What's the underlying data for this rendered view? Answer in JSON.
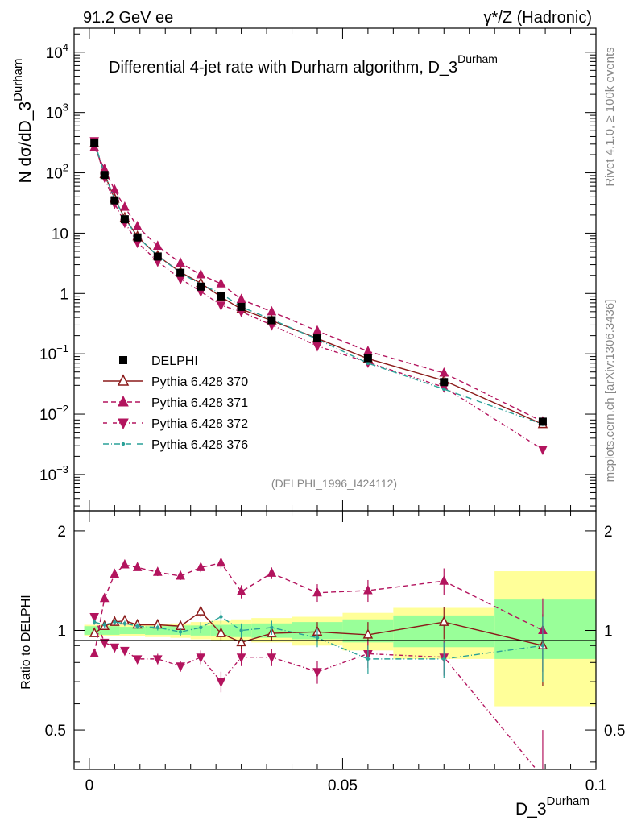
{
  "header": {
    "left": "91.2 GeV ee",
    "right": "γ*/Z (Hadronic)"
  },
  "side_text": {
    "upper": "Rivet 4.1.0, ≥ 100k events",
    "lower": "mcplots.cern.ch [arXiv:1306.3436]"
  },
  "chart_data": {
    "type": "line",
    "title": "Differential 4-jet rate with Durham algorithm, D_3",
    "title_sup": "Durham",
    "watermark": "(DELPHI_1996_I424112)",
    "xlabel": "D_3",
    "xlabel_sup": "Durham",
    "ylabel": "N  dσ/dD_3",
    "ylabel_sup": "Durham",
    "ratio_ylabel": "Ratio to DELPHI",
    "xlim": [
      -0.003,
      0.1
    ],
    "ylim": [
      0.00025,
      25000
    ],
    "ratio_ylim": [
      0.38,
      2.3
    ],
    "x_ticks": [
      0,
      0.05,
      0.1
    ],
    "x_tick_labels": [
      "0",
      "0.05",
      "0.1"
    ],
    "y_ticks": [
      {
        "value": 0.001,
        "base": "10",
        "exp": "−3"
      },
      {
        "value": 0.01,
        "base": "10",
        "exp": "−2"
      },
      {
        "value": 0.1,
        "base": "10",
        "exp": "−1"
      },
      {
        "value": 1,
        "base": "1",
        "exp": ""
      },
      {
        "value": 10,
        "base": "10",
        "exp": ""
      },
      {
        "value": 100,
        "base": "10",
        "exp": "2"
      },
      {
        "value": 1000,
        "base": "10",
        "exp": "3"
      },
      {
        "value": 10000,
        "base": "10",
        "exp": "4"
      }
    ],
    "ratio_ticks": [
      0.5,
      1,
      2
    ],
    "ratio_tick_labels": [
      "0.5",
      "1",
      "2"
    ],
    "x": [
      0.001,
      0.003,
      0.005,
      0.007,
      0.0095,
      0.0135,
      0.018,
      0.022,
      0.026,
      0.03,
      0.036,
      0.045,
      0.055,
      0.07,
      0.0895
    ],
    "data": {
      "name": "DELPHI",
      "color": "#000000",
      "values": [
        310,
        92,
        35,
        17,
        8.5,
        4.1,
        2.2,
        1.3,
        0.9,
        0.6,
        0.36,
        0.18,
        0.085,
        0.034,
        0.0075
      ]
    },
    "bands": [
      {
        "x0": -0.001,
        "x1": 0.002,
        "green": [
          0.97,
          1.03
        ],
        "yellow": [
          0.96,
          1.04
        ]
      },
      {
        "x0": 0.002,
        "x1": 0.004,
        "green": [
          0.97,
          1.03
        ],
        "yellow": [
          0.96,
          1.04
        ]
      },
      {
        "x0": 0.004,
        "x1": 0.006,
        "green": [
          0.97,
          1.03
        ],
        "yellow": [
          0.96,
          1.04
        ]
      },
      {
        "x0": 0.006,
        "x1": 0.008,
        "green": [
          0.975,
          1.025
        ],
        "yellow": [
          0.96,
          1.04
        ]
      },
      {
        "x0": 0.008,
        "x1": 0.011,
        "green": [
          0.975,
          1.025
        ],
        "yellow": [
          0.96,
          1.045
        ]
      },
      {
        "x0": 0.011,
        "x1": 0.016,
        "green": [
          0.97,
          1.03
        ],
        "yellow": [
          0.955,
          1.045
        ]
      },
      {
        "x0": 0.016,
        "x1": 0.02,
        "green": [
          0.97,
          1.035
        ],
        "yellow": [
          0.95,
          1.05
        ]
      },
      {
        "x0": 0.02,
        "x1": 0.024,
        "green": [
          0.965,
          1.035
        ],
        "yellow": [
          0.94,
          1.06
        ]
      },
      {
        "x0": 0.024,
        "x1": 0.028,
        "green": [
          0.96,
          1.04
        ],
        "yellow": [
          0.935,
          1.07
        ]
      },
      {
        "x0": 0.028,
        "x1": 0.032,
        "green": [
          0.955,
          1.045
        ],
        "yellow": [
          0.93,
          1.08
        ]
      },
      {
        "x0": 0.032,
        "x1": 0.04,
        "green": [
          0.95,
          1.05
        ],
        "yellow": [
          0.92,
          1.09
        ]
      },
      {
        "x0": 0.04,
        "x1": 0.05,
        "green": [
          0.94,
          1.06
        ],
        "yellow": [
          0.9,
          1.1
        ]
      },
      {
        "x0": 0.05,
        "x1": 0.06,
        "green": [
          0.92,
          1.08
        ],
        "yellow": [
          0.87,
          1.13
        ]
      },
      {
        "x0": 0.06,
        "x1": 0.08,
        "green": [
          0.89,
          1.11
        ],
        "yellow": [
          0.82,
          1.17
        ]
      },
      {
        "x0": 0.08,
        "x1": 0.1,
        "green": [
          0.82,
          1.24
        ],
        "yellow": [
          0.59,
          1.51
        ]
      }
    ],
    "series": [
      {
        "name": "Pythia 6.428 370",
        "marker": "triangle-up-open",
        "color": "#8b1a1a",
        "dash": "",
        "values": [
          305,
          95,
          37,
          18,
          8.8,
          4.2,
          2.25,
          1.48,
          0.88,
          0.55,
          0.355,
          0.18,
          0.083,
          0.036,
          0.0068
        ],
        "ratio": [
          0.98,
          1.03,
          1.06,
          1.07,
          1.04,
          1.04,
          1.03,
          1.14,
          0.98,
          0.92,
          0.98,
          0.99,
          0.97,
          1.06,
          0.9
        ],
        "ratio_err": [
          0.02,
          0.02,
          0.02,
          0.02,
          0.02,
          0.02,
          0.03,
          0.04,
          0.05,
          0.05,
          0.05,
          0.07,
          0.09,
          0.12,
          0.22
        ]
      },
      {
        "name": "Pythia 6.428 371",
        "marker": "triangle-up",
        "color": "#b3145e",
        "dash": "6,4",
        "values": [
          265,
          115,
          52,
          27,
          12.9,
          6.1,
          3.2,
          2.05,
          1.45,
          0.8,
          0.5,
          0.24,
          0.11,
          0.048,
          0.0075
        ],
        "ratio": [
          0.85,
          1.25,
          1.48,
          1.58,
          1.55,
          1.5,
          1.46,
          1.55,
          1.6,
          1.31,
          1.49,
          1.3,
          1.32,
          1.41,
          1.0
        ],
        "ratio_err": [
          0.02,
          0.03,
          0.03,
          0.03,
          0.03,
          0.04,
          0.04,
          0.05,
          0.06,
          0.06,
          0.06,
          0.08,
          0.1,
          0.13,
          0.25
        ]
      },
      {
        "name": "Pythia 6.428 372",
        "marker": "triangle-down",
        "color": "#b3145e",
        "dash": "5,3,1,3",
        "values": [
          340,
          85,
          31,
          15,
          7.0,
          3.4,
          1.75,
          1.08,
          0.64,
          0.5,
          0.3,
          0.135,
          0.072,
          0.028,
          0.0026
        ],
        "ratio": [
          1.1,
          0.92,
          0.89,
          0.87,
          0.82,
          0.82,
          0.78,
          0.83,
          0.7,
          0.83,
          0.83,
          0.75,
          0.85,
          0.83,
          0.36
        ],
        "ratio_err": [
          0.02,
          0.02,
          0.02,
          0.02,
          0.02,
          0.03,
          0.03,
          0.04,
          0.05,
          0.05,
          0.05,
          0.06,
          0.08,
          0.1,
          0.14
        ]
      },
      {
        "name": "Pythia 6.428 376",
        "marker": "dot",
        "color": "#2aa198",
        "dash": "7,3,1,3",
        "values": [
          330,
          96,
          37,
          17.5,
          8.7,
          4.2,
          2.2,
          1.42,
          1.0,
          0.6,
          0.37,
          0.175,
          0.07,
          0.026,
          0.0068
        ],
        "ratio": [
          1.06,
          1.04,
          1.06,
          1.05,
          1.03,
          1.02,
          0.99,
          1.02,
          1.1,
          1.0,
          1.02,
          0.95,
          0.82,
          0.82,
          0.9
        ],
        "ratio_err": [
          0.02,
          0.02,
          0.02,
          0.02,
          0.02,
          0.02,
          0.03,
          0.04,
          0.05,
          0.05,
          0.05,
          0.06,
          0.08,
          0.1,
          0.2
        ]
      }
    ]
  }
}
